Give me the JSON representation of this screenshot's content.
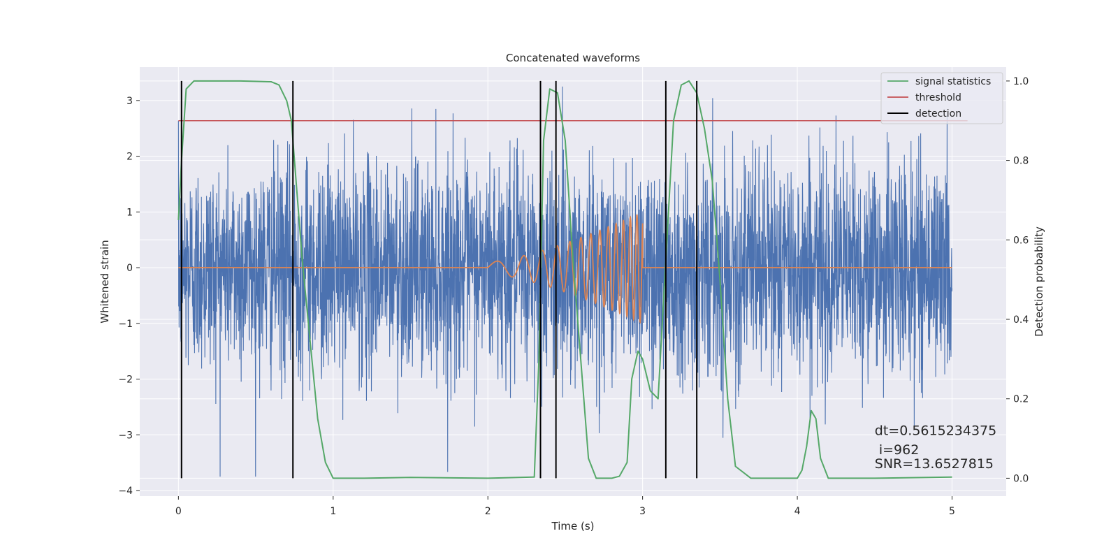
{
  "chart_data": {
    "type": "line",
    "title": "Concatenated waveforms",
    "xlabel": "Time (s)",
    "ylabel": "Whitened strain",
    "y2label": "Detection probability",
    "xlim": [
      -0.25,
      5.35
    ],
    "ylim": [
      -4.1,
      3.6
    ],
    "y2lim": [
      -0.045,
      1.035
    ],
    "xticks": [
      0,
      1,
      2,
      3,
      4,
      5
    ],
    "yticks": [
      -4,
      -3,
      -2,
      -1,
      0,
      1,
      2,
      3
    ],
    "y2ticks": [
      0.0,
      0.2,
      0.4,
      0.6,
      0.8,
      1.0
    ],
    "xtick_labels": [
      "0",
      "1",
      "2",
      "3",
      "4",
      "5"
    ],
    "ytick_labels": [
      "−4",
      "−3",
      "−2",
      "−1",
      "0",
      "1",
      "2",
      "3"
    ],
    "y2tick_labels": [
      "0.0",
      "0.2",
      "0.4",
      "0.6",
      "0.8",
      "1.0"
    ],
    "grid": true,
    "legend_position": "top-right",
    "colors": {
      "background": "#eaeaf2",
      "grid": "#ffffff",
      "noise": "#4c72b0",
      "injection": "#dd8452",
      "signal_statistics": "#55a868",
      "threshold": "#c44e52",
      "detection": "#000000"
    },
    "series": [
      {
        "name": "signal statistics",
        "axis": "right",
        "x": [
          0.0,
          0.02,
          0.05,
          0.1,
          0.2,
          0.4,
          0.6,
          0.65,
          0.7,
          0.73,
          0.76,
          0.8,
          0.85,
          0.9,
          0.95,
          1.0,
          1.2,
          1.5,
          2.0,
          2.3,
          2.33,
          2.36,
          2.4,
          2.45,
          2.5,
          2.55,
          2.6,
          2.65,
          2.7,
          2.8,
          2.85,
          2.9,
          2.93,
          2.97,
          3.0,
          3.05,
          3.1,
          3.15,
          3.2,
          3.25,
          3.3,
          3.35,
          3.4,
          3.45,
          3.5,
          3.55,
          3.6,
          3.7,
          4.0,
          4.03,
          4.06,
          4.09,
          4.12,
          4.15,
          4.2,
          4.5,
          5.0
        ],
        "y": [
          0.65,
          0.8,
          0.98,
          1.0,
          1.0,
          1.0,
          0.998,
          0.99,
          0.95,
          0.9,
          0.75,
          0.55,
          0.35,
          0.15,
          0.04,
          0.0,
          0.0,
          0.002,
          0.0,
          0.003,
          0.3,
          0.85,
          0.98,
          0.97,
          0.85,
          0.55,
          0.3,
          0.05,
          0.0,
          0.0,
          0.005,
          0.04,
          0.25,
          0.32,
          0.3,
          0.22,
          0.2,
          0.55,
          0.9,
          0.99,
          1.0,
          0.97,
          0.88,
          0.75,
          0.5,
          0.2,
          0.03,
          0.0,
          0.0,
          0.02,
          0.08,
          0.17,
          0.15,
          0.05,
          0.0,
          0.0,
          0.003
        ]
      },
      {
        "name": "threshold",
        "axis": "right",
        "x": [
          0.0,
          5.1
        ],
        "y": [
          0.9,
          0.9
        ]
      },
      {
        "name": "detection",
        "axis": "right",
        "type": "vlines",
        "x": [
          0.02,
          0.74,
          2.34,
          2.44,
          3.15,
          3.35
        ],
        "ymin": 0.0,
        "ymax": 1.0
      },
      {
        "name": "",
        "axis": "left",
        "description_type": "noise",
        "x_range": [
          0,
          5
        ],
        "std": 0.95,
        "y_min": -3.75,
        "y_max": 3.25
      },
      {
        "name": "",
        "axis": "left",
        "description_type": "chirp",
        "x_range": [
          2.0,
          3.0
        ],
        "amp_start": 0.1,
        "amp_end": 1.0,
        "freq_start_hz": 4,
        "freq_end_hz": 25
      }
    ],
    "annotations": [
      {
        "text": "dt=0.5615234375",
        "x": 4.5,
        "y": -3.0
      },
      {
        "text": " i=962",
        "x": 4.5,
        "y": -3.35
      },
      {
        "text": "SNR=13.6527815",
        "x": 4.5,
        "y": -3.6
      }
    ]
  }
}
